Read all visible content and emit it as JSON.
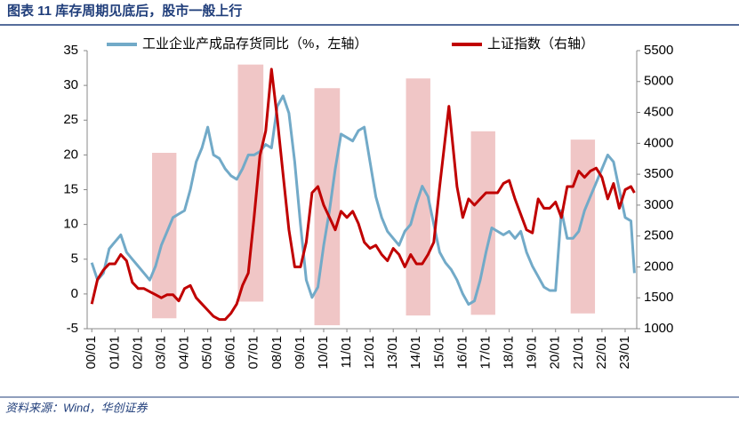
{
  "chart_data": {
    "type": "line",
    "title": "图表 11   库存周期见底后，股市一般上行",
    "source": "资料来源：Wind，华创证券",
    "xlim": [
      -0.2,
      23.5
    ],
    "xticks": [
      {
        "value": 0,
        "label": "00/01"
      },
      {
        "value": 1,
        "label": "01/01"
      },
      {
        "value": 2,
        "label": "02/01"
      },
      {
        "value": 3,
        "label": "03/01"
      },
      {
        "value": 4,
        "label": "04/01"
      },
      {
        "value": 5,
        "label": "05/01"
      },
      {
        "value": 6,
        "label": "06/01"
      },
      {
        "value": 7,
        "label": "07/01"
      },
      {
        "value": 8,
        "label": "08/01"
      },
      {
        "value": 9,
        "label": "09/01"
      },
      {
        "value": 10,
        "label": "10/01"
      },
      {
        "value": 11,
        "label": "11/01"
      },
      {
        "value": 12,
        "label": "12/01"
      },
      {
        "value": 13,
        "label": "13/01"
      },
      {
        "value": 14,
        "label": "14/01"
      },
      {
        "value": 15,
        "label": "15/01"
      },
      {
        "value": 16,
        "label": "16/01"
      },
      {
        "value": 17,
        "label": "17/01"
      },
      {
        "value": 18,
        "label": "18/01"
      },
      {
        "value": 19,
        "label": "19/01"
      },
      {
        "value": 20,
        "label": "20/01"
      },
      {
        "value": 21,
        "label": "21/01"
      },
      {
        "value": 22,
        "label": "22/01"
      },
      {
        "value": 23,
        "label": "23/01"
      }
    ],
    "ylim": [
      -5,
      35
    ],
    "yticks": [
      -5,
      0,
      5,
      10,
      15,
      20,
      25,
      30,
      35
    ],
    "y2lim": [
      1000,
      5500
    ],
    "y2ticks": [
      1000,
      1500,
      2000,
      2500,
      3000,
      3500,
      4000,
      4500,
      5000,
      5500
    ],
    "bands": {
      "color": "#f0c6c6",
      "x": [
        [
          2.6,
          3.65
        ],
        [
          6.3,
          7.4
        ],
        [
          9.6,
          10.7
        ],
        [
          13.55,
          14.6
        ],
        [
          16.35,
          17.4
        ],
        [
          20.65,
          21.7
        ]
      ],
      "y": [
        [
          -3.5,
          20.3
        ],
        [
          -1.1,
          33
        ],
        [
          -4.5,
          29.6
        ],
        [
          -3.1,
          31
        ],
        [
          -3,
          23.4
        ],
        [
          -2.8,
          22.2
        ]
      ]
    },
    "series": [
      {
        "name": "工业企业产成品存货同比（%，左轴）",
        "color": "#72aac8",
        "axis": "y",
        "x": [
          0,
          0.25,
          0.5,
          0.75,
          1,
          1.25,
          1.5,
          1.75,
          2,
          2.25,
          2.5,
          2.75,
          3,
          3.25,
          3.5,
          3.75,
          4,
          4.25,
          4.5,
          4.75,
          5,
          5.25,
          5.5,
          5.75,
          6,
          6.25,
          6.5,
          6.75,
          7,
          7.25,
          7.5,
          7.75,
          8,
          8.25,
          8.5,
          8.75,
          9,
          9.25,
          9.5,
          9.75,
          10,
          10.25,
          10.5,
          10.75,
          11,
          11.25,
          11.5,
          11.75,
          12,
          12.25,
          12.5,
          12.75,
          13,
          13.25,
          13.5,
          13.75,
          14,
          14.25,
          14.5,
          14.75,
          15,
          15.25,
          15.5,
          15.75,
          16,
          16.25,
          16.5,
          16.75,
          17,
          17.25,
          17.5,
          17.75,
          18,
          18.25,
          18.5,
          18.75,
          19,
          19.25,
          19.5,
          19.75,
          20,
          20.25,
          20.5,
          20.75,
          21,
          21.25,
          21.5,
          21.75,
          22,
          22.25,
          22.5,
          22.75,
          23,
          23.25,
          23.4
        ],
        "values": [
          4.5,
          2,
          3,
          6.5,
          7.5,
          8.5,
          6,
          5,
          4,
          3,
          2,
          4,
          7,
          9,
          11,
          11.5,
          12,
          15,
          19,
          21,
          24,
          20,
          19.5,
          18,
          17,
          16.5,
          18,
          20,
          20,
          20.5,
          21.5,
          21,
          27,
          28.5,
          26,
          19,
          10,
          2,
          -0.5,
          1,
          7,
          12,
          18,
          23,
          22.5,
          22,
          23.5,
          24,
          19,
          14,
          11,
          9,
          8,
          7,
          9,
          10,
          13,
          15.5,
          14,
          10,
          6,
          4.5,
          3.5,
          2,
          0,
          -1.5,
          -1,
          2,
          6,
          9.5,
          9,
          8.5,
          9,
          8,
          9,
          6,
          4,
          2.5,
          1,
          0.5,
          0.5,
          12,
          8,
          8,
          9,
          12,
          14,
          16,
          18,
          20,
          19,
          15,
          11,
          10.5,
          3
        ]
      },
      {
        "name": "上证指数（右轴）",
        "color": "#c00000",
        "axis": "y2",
        "x": [
          0,
          0.25,
          0.5,
          0.75,
          1,
          1.25,
          1.5,
          1.75,
          2,
          2.25,
          2.5,
          2.75,
          3,
          3.25,
          3.5,
          3.75,
          4,
          4.25,
          4.5,
          4.75,
          5,
          5.25,
          5.5,
          5.75,
          6,
          6.25,
          6.5,
          6.75,
          7,
          7.25,
          7.5,
          7.75,
          8,
          8.25,
          8.5,
          8.75,
          9,
          9.25,
          9.5,
          9.75,
          10,
          10.25,
          10.5,
          10.75,
          11,
          11.25,
          11.5,
          11.75,
          12,
          12.25,
          12.5,
          12.75,
          13,
          13.25,
          13.5,
          13.75,
          14,
          14.25,
          14.5,
          14.75,
          15,
          15.4,
          15.75,
          16,
          16.25,
          16.5,
          16.75,
          17,
          17.25,
          17.5,
          17.75,
          18,
          18.25,
          18.5,
          18.75,
          19,
          19.25,
          19.5,
          19.75,
          20,
          20.25,
          20.5,
          20.75,
          21,
          21.25,
          21.5,
          21.75,
          22,
          22.25,
          22.5,
          22.75,
          23,
          23.25,
          23.4
        ],
        "values": [
          1400,
          1800,
          1950,
          2050,
          2050,
          2200,
          2100,
          1750,
          1650,
          1650,
          1600,
          1550,
          1500,
          1550,
          1550,
          1450,
          1650,
          1700,
          1500,
          1400,
          1300,
          1200,
          1150,
          1150,
          1250,
          1400,
          1700,
          1900,
          2800,
          3800,
          4200,
          5200,
          4400,
          3500,
          2600,
          2000,
          2000,
          2400,
          3200,
          3300,
          3000,
          2800,
          2600,
          2900,
          2800,
          2900,
          2700,
          2400,
          2300,
          2350,
          2200,
          2100,
          2300,
          2200,
          2000,
          2200,
          2050,
          2050,
          2200,
          2400,
          3300,
          4600,
          3300,
          2800,
          3100,
          3000,
          3100,
          3200,
          3200,
          3200,
          3350,
          3400,
          3100,
          2850,
          2600,
          2550,
          3100,
          2950,
          2950,
          3050,
          2800,
          3300,
          3300,
          3550,
          3450,
          3550,
          3600,
          3450,
          3100,
          3350,
          2950,
          3250,
          3300,
          3200
        ]
      }
    ]
  }
}
